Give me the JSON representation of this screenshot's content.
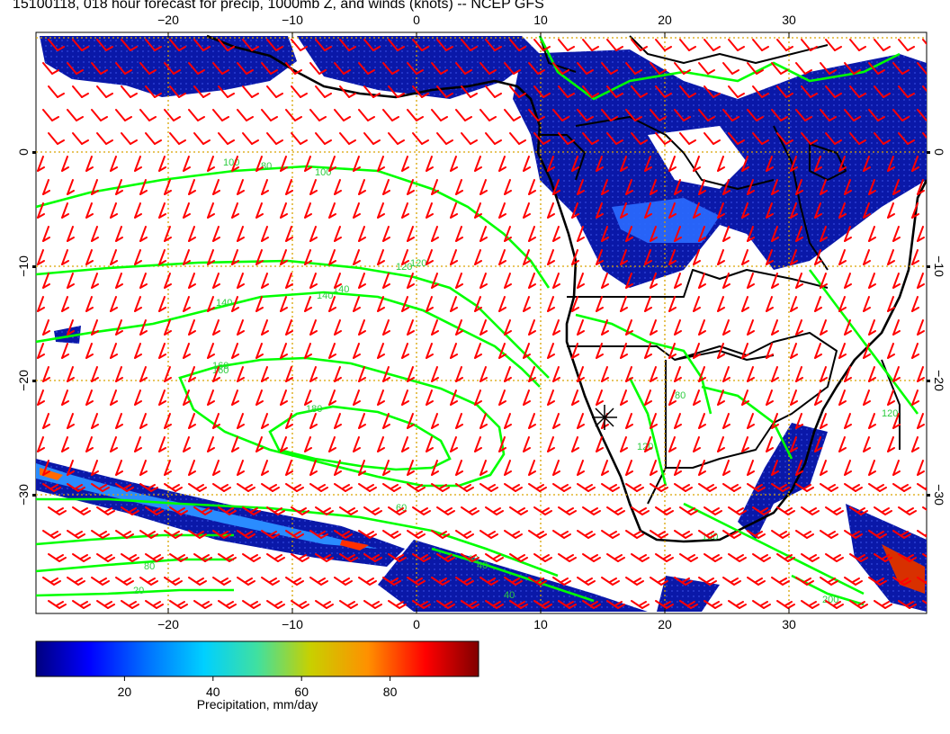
{
  "title": "15100118, 018 hour forecast for precip, 1000mb Z, and winds (knots) -- NCEP GFS",
  "map": {
    "lon_ticks": [
      "−20",
      "−10",
      "0",
      "10",
      "20",
      "30"
    ],
    "lon_values": [
      -20,
      -10,
      0,
      10,
      20,
      30
    ],
    "lat_ticks": [
      "0",
      "−10",
      "−20",
      "−30"
    ],
    "lat_values": [
      0,
      -10,
      -20,
      -30
    ],
    "contour_labels": [
      "100",
      "120",
      "140",
      "140",
      "160",
      "180",
      "160",
      "140",
      "120",
      "100",
      "80",
      "60",
      "40",
      "20",
      "80",
      "120",
      "120",
      "200",
      "80",
      "100",
      "60",
      "40"
    ],
    "colors": {
      "contour": "#00ff00",
      "barb": "#ff0000",
      "coast": "#000000",
      "grid": "#d9a300",
      "precip_low": "#000080",
      "precip_mid": "#1e5fff"
    }
  },
  "colorbar": {
    "ticks": [
      "20",
      "40",
      "60",
      "80"
    ],
    "tick_values": [
      20,
      40,
      60,
      80
    ],
    "min": 0,
    "max": 100,
    "label": "Precipitation, mm/day",
    "stops": [
      "#00007f",
      "#0000ff",
      "#00a0ff",
      "#00e0e0",
      "#60e060",
      "#c8c800",
      "#ff8000",
      "#ff0000",
      "#8b0000"
    ]
  }
}
